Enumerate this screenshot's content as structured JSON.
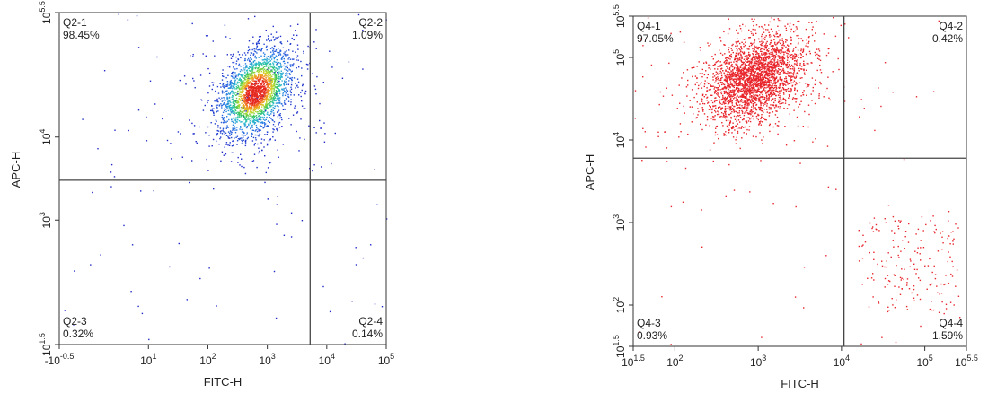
{
  "chart_data": [
    {
      "type": "scatter",
      "xlabel": "FITC-H",
      "ylabel": "APC-H",
      "xscale": "log",
      "yscale": "log",
      "xlim": [
        -0.5,
        5
      ],
      "ylim": [
        1.5,
        5.5
      ],
      "x_tick_labels": [
        {
          "base": "-10",
          "exp": "-0.5",
          "value": -0.5
        },
        {
          "base": "10",
          "exp": "1",
          "value": 1
        },
        {
          "base": "10",
          "exp": "2",
          "value": 2
        },
        {
          "base": "10",
          "exp": "3",
          "value": 3
        },
        {
          "base": "10",
          "exp": "4",
          "value": 4
        },
        {
          "base": "10",
          "exp": "5",
          "value": 5
        }
      ],
      "y_tick_labels": [
        {
          "base": "10",
          "exp": "1.5",
          "value": 1.5
        },
        {
          "base": "10",
          "exp": "3",
          "value": 3
        },
        {
          "base": "10",
          "exp": "4",
          "value": 4
        },
        {
          "base": "10",
          "exp": "5.5",
          "value": 5.5
        }
      ],
      "gate": {
        "x": 3.72,
        "y": 3.48
      },
      "colormap": "density",
      "population": {
        "center_x": 2.8,
        "center_y": 4.55
      },
      "quadrants": [
        {
          "name": "Q2-1",
          "percent": "98.45%",
          "position": "top-left"
        },
        {
          "name": "Q2-2",
          "percent": "1.09%",
          "position": "top-right"
        },
        {
          "name": "Q2-3",
          "percent": "0.32%",
          "position": "bottom-left"
        },
        {
          "name": "Q2-4",
          "percent": "0.14%",
          "position": "bottom-right"
        }
      ]
    },
    {
      "type": "scatter",
      "xlabel": "FITC-H",
      "ylabel": "APC-H",
      "xscale": "log",
      "yscale": "log",
      "xlim": [
        1.5,
        5.5
      ],
      "ylim": [
        1.5,
        5.5
      ],
      "x_tick_labels": [
        {
          "base": "10",
          "exp": "1.5",
          "value": 1.5
        },
        {
          "base": "10",
          "exp": "2",
          "value": 2
        },
        {
          "base": "10",
          "exp": "3",
          "value": 3
        },
        {
          "base": "10",
          "exp": "4",
          "value": 4
        },
        {
          "base": "10",
          "exp": "5",
          "value": 5
        },
        {
          "base": "10",
          "exp": "5.5",
          "value": 5.5
        }
      ],
      "y_tick_labels": [
        {
          "base": "10",
          "exp": "1.5",
          "value": 1.5
        },
        {
          "base": "10",
          "exp": "2",
          "value": 2
        },
        {
          "base": "10",
          "exp": "3",
          "value": 3
        },
        {
          "base": "10",
          "exp": "4",
          "value": 4
        },
        {
          "base": "10",
          "exp": "5",
          "value": 5
        },
        {
          "base": "10",
          "exp": "5.5",
          "value": 5.5
        }
      ],
      "gate": {
        "x": 4.03,
        "y": 3.78
      },
      "color": "#e8252b",
      "population": {
        "center_x": 2.95,
        "center_y": 4.75
      },
      "quadrants": [
        {
          "name": "Q4-1",
          "percent": "97.05%",
          "position": "top-left"
        },
        {
          "name": "Q4-2",
          "percent": "0.42%",
          "position": "top-right"
        },
        {
          "name": "Q4-3",
          "percent": "0.93%",
          "position": "bottom-left"
        },
        {
          "name": "Q4-4",
          "percent": "1.59%",
          "position": "bottom-right"
        }
      ]
    }
  ]
}
